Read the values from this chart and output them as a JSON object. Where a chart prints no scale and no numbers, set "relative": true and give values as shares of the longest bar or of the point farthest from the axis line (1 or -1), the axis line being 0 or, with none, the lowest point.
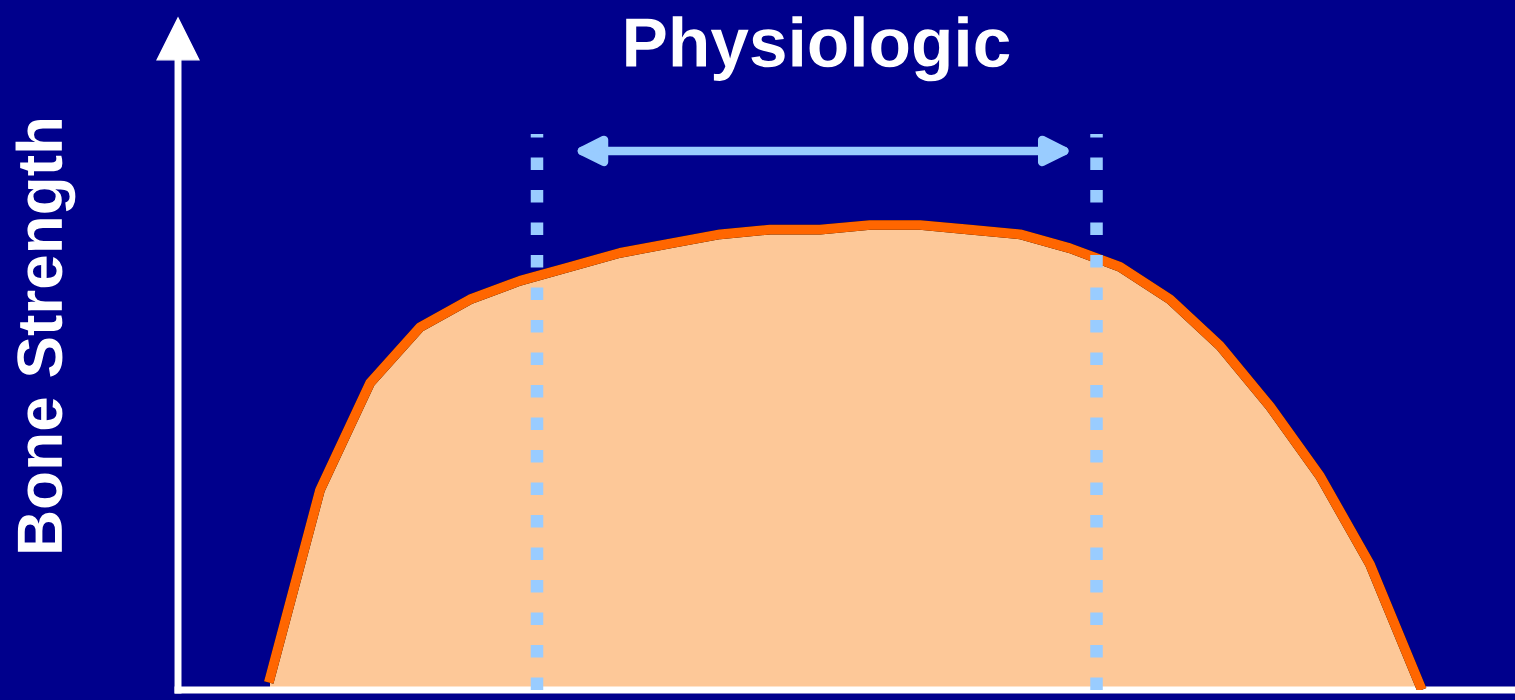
{
  "chart_data": {
    "type": "area",
    "relative": true,
    "ylabel": "Bone Strength",
    "categories": [
      null,
      null,
      null,
      null,
      null,
      null,
      null,
      null,
      null,
      null,
      null,
      null,
      null,
      null,
      null,
      null,
      null,
      null,
      null,
      null,
      null,
      null,
      null,
      null
    ],
    "series": [
      {
        "color": "#fdc898",
        "values": [
          0.026,
          0.43,
          0.66,
          0.78,
          0.84,
          0.88,
          0.91,
          0.94,
          0.96,
          0.98,
          0.99,
          0.99,
          1.0,
          1.0,
          0.99,
          0.98,
          0.95,
          0.91,
          0.84,
          0.74,
          0.61,
          0.46,
          0.27,
          0.01
        ]
      }
    ],
    "annotations": [
      "Physiologic"
    ]
  }
}
